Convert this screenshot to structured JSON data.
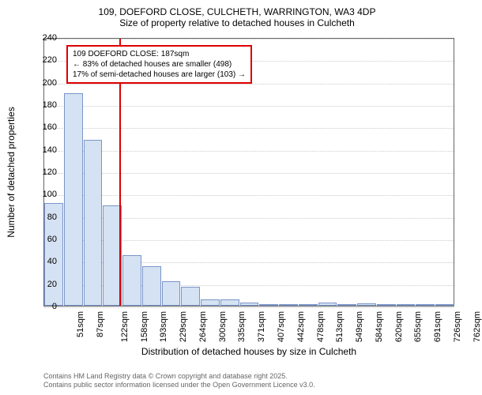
{
  "chart": {
    "type": "histogram",
    "title_line1": "109, DOEFORD CLOSE, CULCHETH, WARRINGTON, WA3 4DP",
    "title_line2": "Size of property relative to detached houses in Culcheth",
    "ylabel": "Number of detached properties",
    "xlabel": "Distribution of detached houses by size in Culcheth",
    "ylim": [
      0,
      240
    ],
    "ytick_step": 20,
    "yticks": [
      0,
      20,
      40,
      60,
      80,
      100,
      120,
      140,
      160,
      180,
      200,
      220,
      240
    ],
    "xticks": [
      "51sqm",
      "87sqm",
      "122sqm",
      "158sqm",
      "193sqm",
      "229sqm",
      "264sqm",
      "300sqm",
      "335sqm",
      "371sqm",
      "407sqm",
      "442sqm",
      "478sqm",
      "513sqm",
      "549sqm",
      "584sqm",
      "620sqm",
      "655sqm",
      "691sqm",
      "726sqm",
      "762sqm"
    ],
    "bars": [
      {
        "x": 0,
        "h": 92
      },
      {
        "x": 1,
        "h": 190
      },
      {
        "x": 2,
        "h": 148
      },
      {
        "x": 3,
        "h": 90
      },
      {
        "x": 4,
        "h": 45
      },
      {
        "x": 5,
        "h": 35
      },
      {
        "x": 6,
        "h": 22
      },
      {
        "x": 7,
        "h": 17
      },
      {
        "x": 8,
        "h": 6
      },
      {
        "x": 9,
        "h": 6
      },
      {
        "x": 10,
        "h": 3
      },
      {
        "x": 11,
        "h": 1
      },
      {
        "x": 12,
        "h": 0
      },
      {
        "x": 13,
        "h": 1
      },
      {
        "x": 14,
        "h": 3
      },
      {
        "x": 15,
        "h": 0
      },
      {
        "x": 16,
        "h": 2
      },
      {
        "x": 17,
        "h": 0
      },
      {
        "x": 18,
        "h": 1
      },
      {
        "x": 19,
        "h": 0
      },
      {
        "x": 20,
        "h": 0
      }
    ],
    "bar_color": "#d5e2f3",
    "bar_border": "#7a95c7",
    "grid_color": "#ccc",
    "ref_value_sqm": 187,
    "ref_line_color": "#d00",
    "annotation": {
      "line1": "109 DOEFORD CLOSE: 187sqm",
      "line2": "← 83% of detached houses are smaller (498)",
      "line3": "17% of semi-detached houses are larger (103) →"
    },
    "footer_line1": "Contains HM Land Registry data © Crown copyright and database right 2025.",
    "footer_line2": "Contains public sector information licensed under the Open Government Licence v3.0."
  }
}
